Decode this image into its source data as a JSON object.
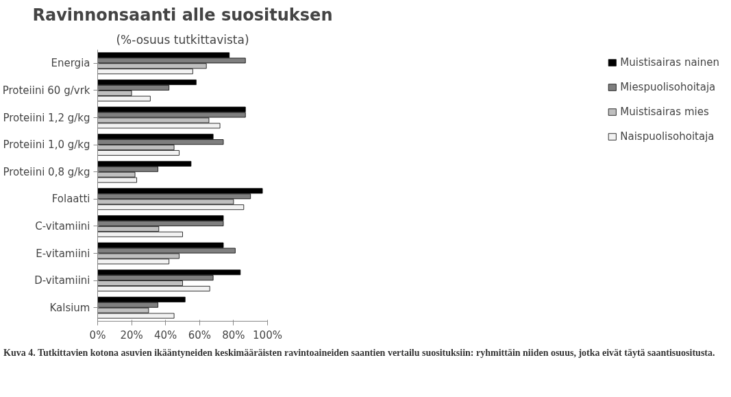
{
  "chart_data": {
    "type": "bar",
    "orientation": "horizontal",
    "title": "Ravinnonsaanti alle suosituksen",
    "subtitle": "(%-osuus tutkittavista)",
    "categories": [
      "Energia",
      "Proteiini 60 g/vrk",
      "Proteiini 1,2 g/kg",
      "Proteiini 1,0 g/kg",
      "Proteiini 0,8 g/kg",
      "Folaatti",
      "C-vitamiini",
      "E-vitamiini",
      "D-vitamiini",
      "Kalsium"
    ],
    "series": [
      {
        "name": "Muistisairas nainen",
        "color": "#000000",
        "values": [
          77.5,
          58,
          87,
          68,
          55,
          97,
          74,
          74,
          84,
          51.5
        ]
      },
      {
        "name": "Miespuolisohoitaja",
        "color": "#7f7f7f",
        "values": [
          87,
          42,
          87,
          74,
          35.5,
          90,
          74,
          81,
          68,
          35.5
        ]
      },
      {
        "name": "Muistisairas mies",
        "color": "#bfbfbf",
        "values": [
          64,
          20,
          65.5,
          45,
          22,
          80,
          36,
          48,
          50,
          30
        ]
      },
      {
        "name": "Naispuolisohoitaja",
        "color": "#f2f2f2",
        "values": [
          56,
          31,
          72,
          48,
          23,
          86,
          50,
          42,
          66,
          45
        ]
      }
    ],
    "xlim": [
      0,
      100
    ],
    "xticks": [
      {
        "value": 0,
        "label": "0%"
      },
      {
        "value": 20,
        "label": "20%"
      },
      {
        "value": 40,
        "label": "40%"
      },
      {
        "value": 60,
        "label": "60%"
      },
      {
        "value": 80,
        "label": "80%"
      },
      {
        "value": 100,
        "label": "100%"
      }
    ],
    "grid": false,
    "legend": "right",
    "annotations": [
      "Kuva 4. Tutkittavien kotona asuvien ikääntyneiden keskimääräisten ravintoaineiden saantien vertailu suosituksiin: ryhmittäin niiden osuus, jotka eivät täytä saantisuositusta."
    ]
  }
}
